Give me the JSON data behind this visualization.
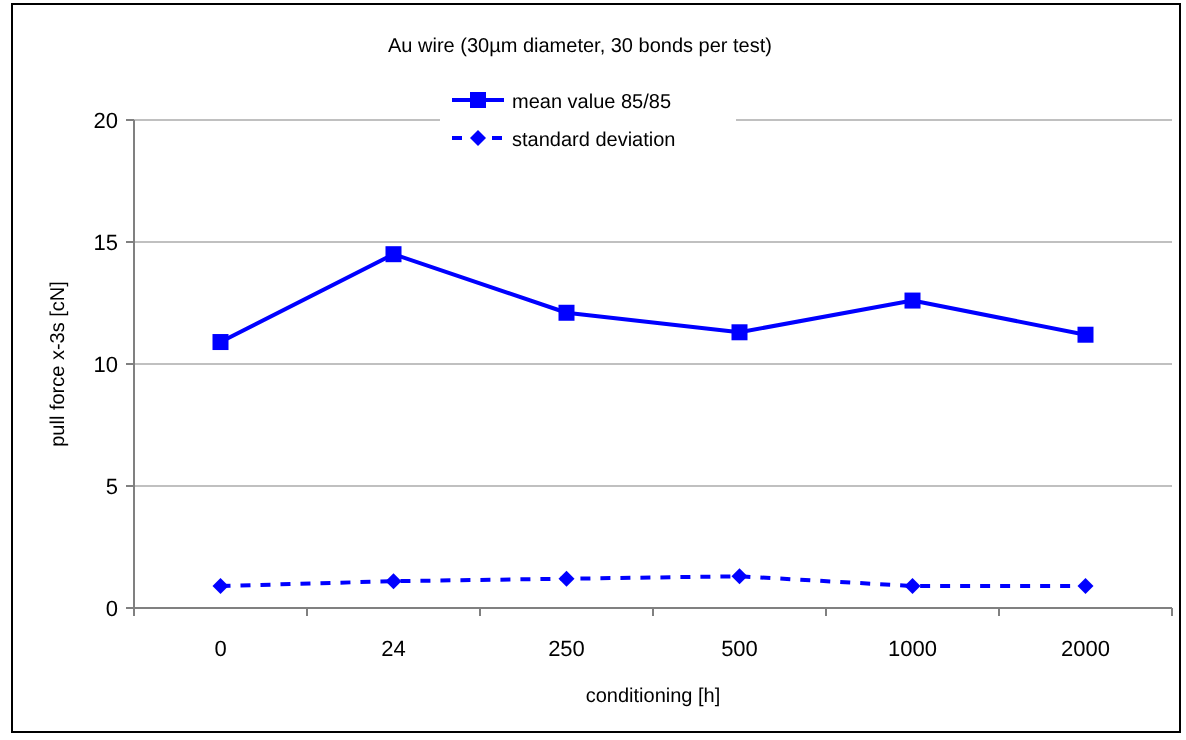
{
  "chart_data": {
    "type": "line",
    "title": "Au wire (30µm diameter, 30 bonds per test)",
    "xlabel": "conditioning [h]",
    "ylabel": "pull force x-3s [cN]",
    "categories": [
      "0",
      "24",
      "250",
      "500",
      "1000",
      "2000"
    ],
    "series": [
      {
        "name": "mean value 85/85",
        "color": "#0000ff",
        "values": [
          10.9,
          14.5,
          12.1,
          11.3,
          12.6,
          11.2
        ],
        "marker": "square",
        "line_style": "solid"
      },
      {
        "name": "standard deviation",
        "color": "#0000ff",
        "values": [
          0.9,
          1.1,
          1.2,
          1.3,
          0.9,
          0.9
        ],
        "marker": "diamond",
        "line_style": "dashed"
      }
    ],
    "ylim": [
      0,
      20
    ],
    "yticks": [
      0,
      5,
      10,
      15,
      20
    ],
    "grid": "y",
    "legend": "top"
  }
}
